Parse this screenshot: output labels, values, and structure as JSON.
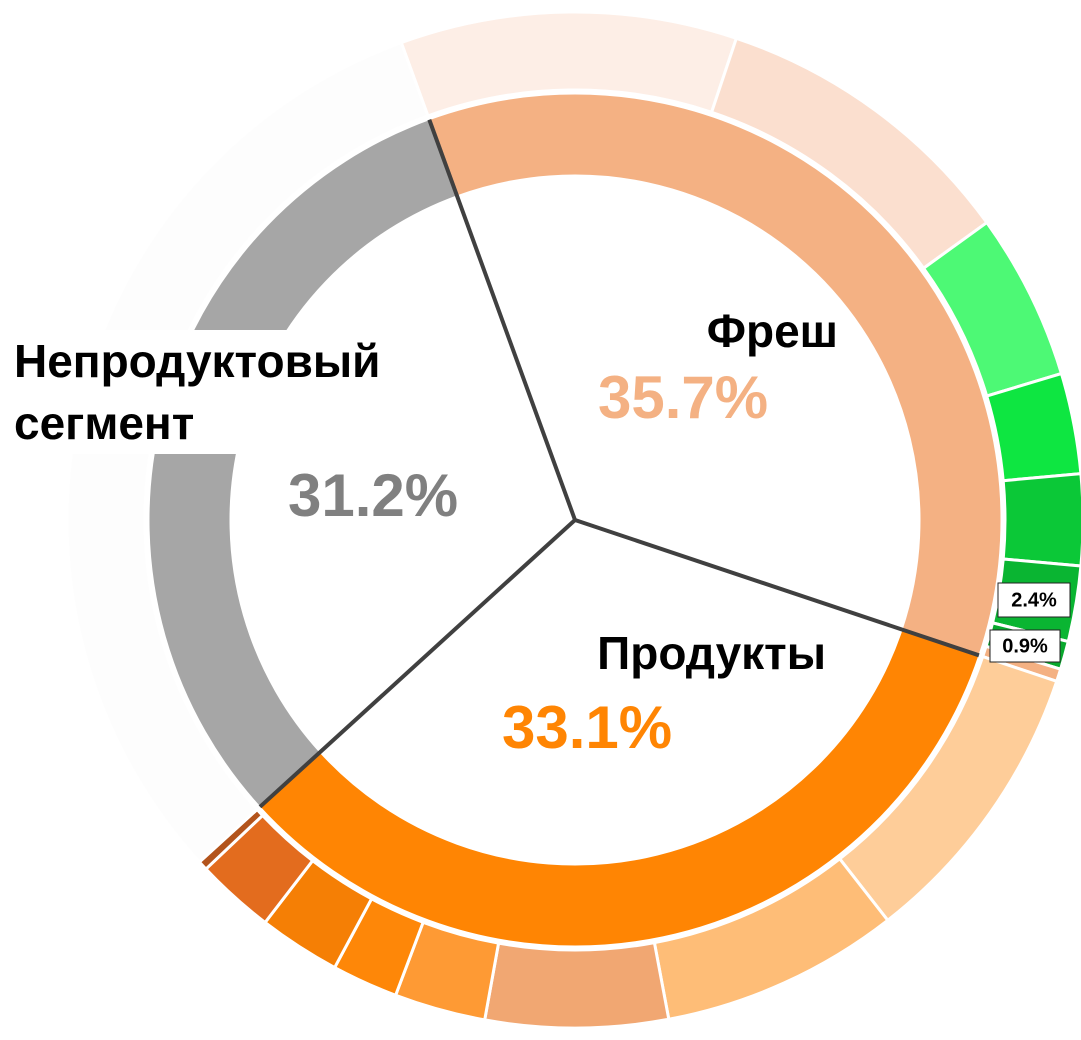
{
  "chart_data": {
    "type": "sunburst",
    "categories": [
      "Фреш",
      "Продукты",
      "Непродуктовый сегмент"
    ],
    "values": [
      35.7,
      33.1,
      31.2
    ],
    "value_labels": [
      "35.7%",
      "33.1%",
      "31.2%"
    ],
    "colors": [
      "#f4b183",
      "#ff8503",
      "#a6a6a6"
    ],
    "label_colors": [
      "#f4b183",
      "#ff8503",
      "#808080"
    ],
    "children": [
      {
        "values": [
          10.7,
          9.9,
          5.3,
          3.2,
          2.9,
          2.4,
          0.9,
          0.4
        ],
        "value_labels": [
          null,
          null,
          null,
          null,
          null,
          "2.4%",
          "0.9%",
          null
        ],
        "colors": [
          "#fdeee6",
          "#fbdfcf",
          "#4df975",
          "#0ee641",
          "#0bc837",
          "#0ab532",
          "#09a82d",
          "#f4b183"
        ]
      },
      {
        "values": [
          9.3,
          7.6,
          5.8,
          2.9,
          2.1,
          2.6,
          2.5,
          0.3
        ],
        "colors": [
          "#fecd99",
          "#febd77",
          "#f1a772",
          "#fe9a34",
          "#fe8708",
          "#f57f05",
          "#e36c1e",
          "#b3541c"
        ]
      },
      {
        "values": [
          31.2
        ],
        "colors": [
          "#fdfdfd"
        ]
      }
    ]
  }
}
